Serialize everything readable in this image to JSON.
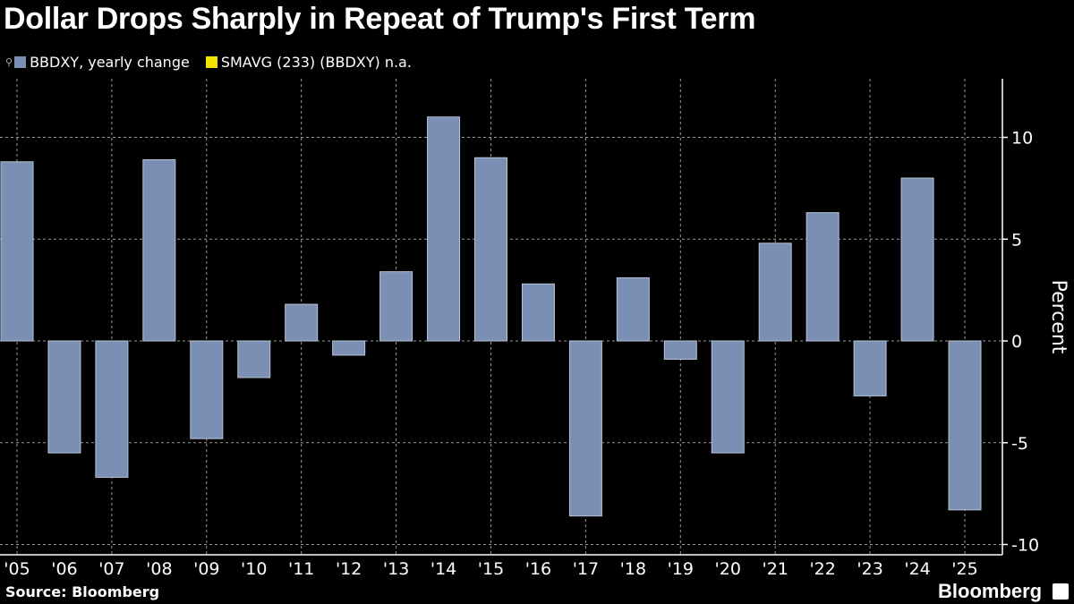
{
  "title": "Dollar Drops Sharply in Repeat of Trump's First Term",
  "legend": [
    {
      "label": "BBDXY, yearly change",
      "color": "#7a8fb3"
    },
    {
      "label": "SMAVG (233) (BBDXY) n.a.",
      "color": "#f2e300"
    }
  ],
  "source": "Source: Bloomberg",
  "brand": "Bloomberg",
  "chart_data": {
    "type": "bar",
    "title": "Dollar Drops Sharply in Repeat of Trump's First Term",
    "xlabel": "",
    "ylabel": "Percent",
    "ylim": [
      -10.5,
      12.8
    ],
    "yticks": [
      -10,
      -5,
      0,
      5,
      10
    ],
    "axis_side": "right",
    "grid": true,
    "legend_position": "top-left",
    "categories": [
      "'05",
      "'06",
      "'07",
      "'08",
      "'09",
      "'10",
      "'11",
      "'12",
      "'13",
      "'14",
      "'15",
      "'16",
      "'17",
      "'18",
      "'19",
      "'20",
      "'21",
      "'22",
      "'23",
      "'24",
      "'25"
    ],
    "series": [
      {
        "name": "BBDXY, yearly change",
        "color": "#7a8fb3",
        "values": [
          8.8,
          -5.5,
          -6.7,
          8.9,
          -4.8,
          -1.8,
          1.8,
          -0.7,
          3.4,
          11.0,
          9.0,
          2.8,
          -8.6,
          3.1,
          -0.9,
          -5.5,
          4.8,
          6.3,
          -2.7,
          8.0,
          -8.3
        ]
      }
    ]
  }
}
